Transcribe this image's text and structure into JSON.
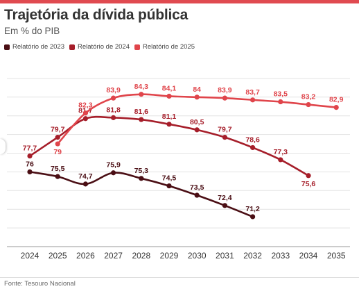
{
  "chart_data": {
    "type": "line",
    "title": "Trajetória da dívida pública",
    "subtitle": "Em % do PIB",
    "xlabel": "",
    "ylabel": "",
    "x": [
      "2024",
      "2025",
      "2026",
      "2027",
      "2028",
      "2029",
      "2030",
      "2031",
      "2032",
      "2033",
      "2034",
      "2035"
    ],
    "ylim": [
      68,
      88
    ],
    "grid": true,
    "legend_position": "top-left",
    "series": [
      {
        "name": "Relatório de 2023",
        "color": "#4a0e14",
        "values": [
          76,
          75.5,
          74.7,
          75.9,
          75.3,
          74.5,
          73.5,
          72.4,
          71.2,
          null,
          null,
          null
        ],
        "labels": [
          "76",
          "75,5",
          "74,7",
          "75,9",
          "75,3",
          "74,5",
          "73,5",
          "72,4",
          "71,2",
          "",
          "",
          ""
        ]
      },
      {
        "name": "Relatório de 2024",
        "color": "#a61e2a",
        "values": [
          77.7,
          79.7,
          81.7,
          81.8,
          81.6,
          81.1,
          80.5,
          79.7,
          78.6,
          77.3,
          75.6,
          null
        ],
        "labels": [
          "77,7",
          "79,7",
          "81,7",
          "81,8",
          "81,6",
          "81,1",
          "80,5",
          "79,7",
          "78,6",
          "77,3",
          "75,6",
          ""
        ]
      },
      {
        "name": "Relatório de 2025",
        "color": "#e0454b",
        "values": [
          null,
          79,
          82.3,
          83.9,
          84.3,
          84.1,
          84,
          83.9,
          83.7,
          83.5,
          83.2,
          82.9
        ],
        "labels": [
          "",
          "79",
          "82,3",
          "83,9",
          "84,3",
          "84,1",
          "84",
          "83,9",
          "83,7",
          "83,5",
          "83,2",
          "82,9"
        ]
      }
    ]
  },
  "source": "Fonte: Tesouro Nacional"
}
